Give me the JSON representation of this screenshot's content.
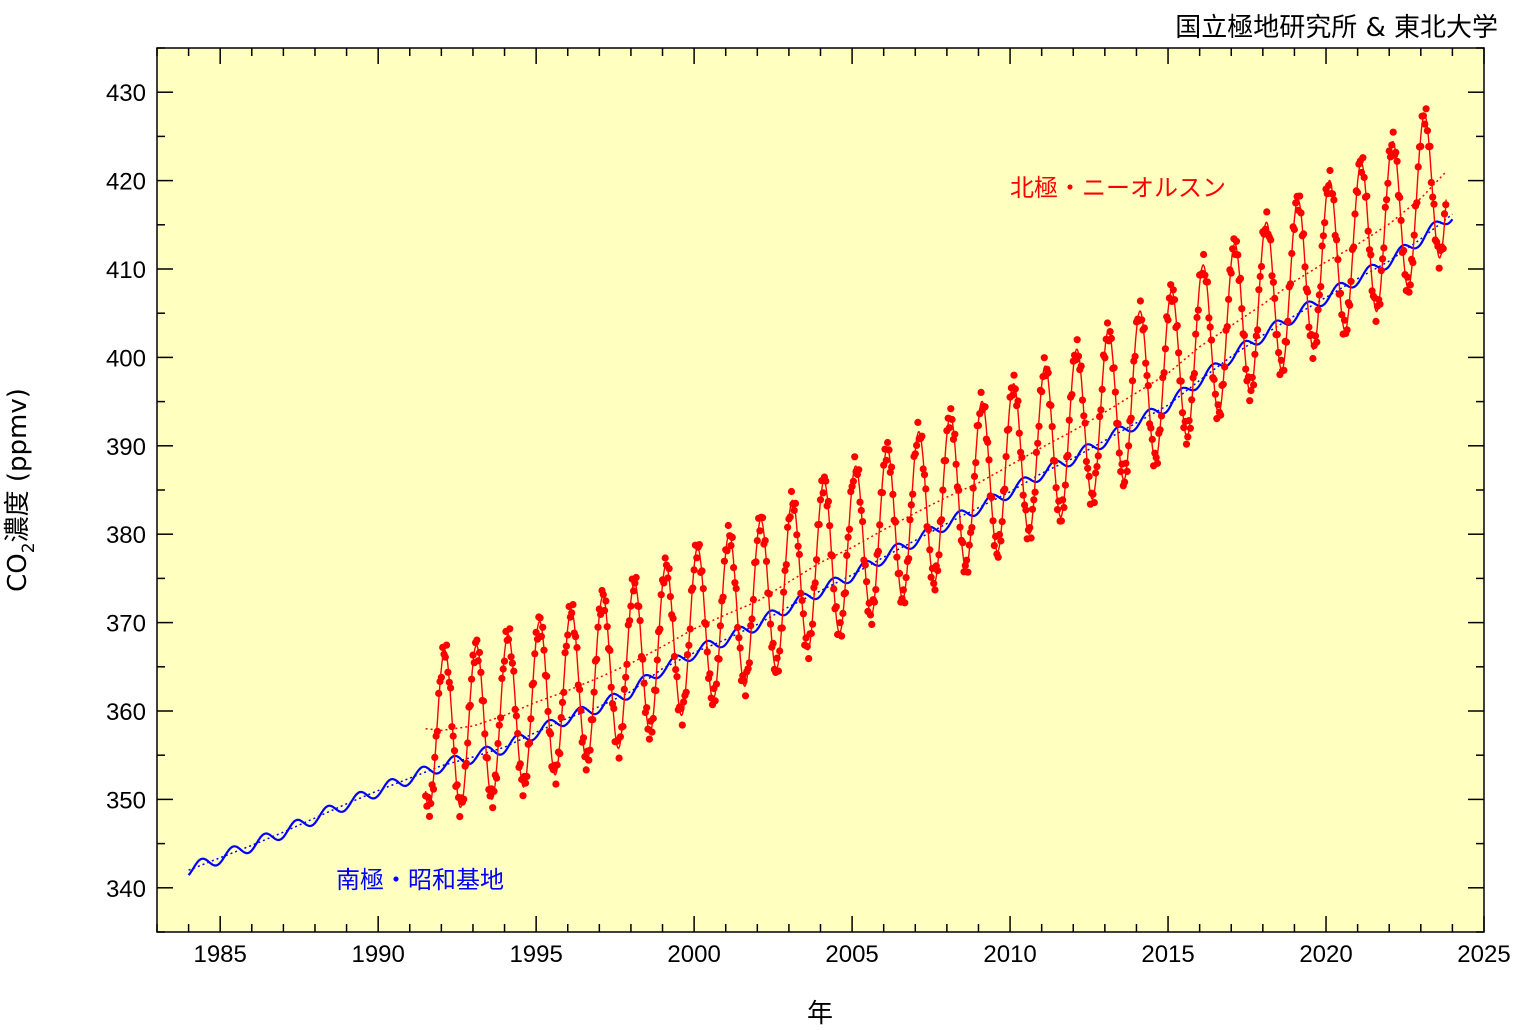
{
  "credit": "国立極地研究所 & 東北大学",
  "chart_data": {
    "type": "line",
    "title": "",
    "xlabel": "年",
    "ylabel_main": "CO",
    "ylabel_sub": "2",
    "ylabel_rest": "濃度 (ppmv)",
    "xlim": [
      1983,
      2025
    ],
    "ylim": [
      335,
      435
    ],
    "x_ticks": [
      1985,
      1990,
      1995,
      2000,
      2005,
      2010,
      2015,
      2020,
      2025
    ],
    "y_ticks": [
      340,
      350,
      360,
      370,
      380,
      390,
      400,
      410,
      420,
      430
    ],
    "background_color": "#ffffc0",
    "grid": false,
    "series": [
      {
        "name": "南極・昭和基地",
        "color": "#0000ff",
        "x": [
          1984.0,
          1985.0,
          1986.0,
          1987.0,
          1988.0,
          1989.0,
          1990.0,
          1991.0,
          1992.0,
          1993.0,
          1994.0,
          1995.0,
          1996.0,
          1997.0,
          1998.0,
          1999.0,
          2000.0,
          2001.0,
          2002.0,
          2003.0,
          2004.0,
          2005.0,
          2006.0,
          2007.0,
          2008.0,
          2009.0,
          2010.0,
          2011.0,
          2012.0,
          2013.0,
          2014.0,
          2015.0,
          2016.0,
          2017.0,
          2018.0,
          2019.0,
          2020.0,
          2021.0,
          2022.0,
          2023.0,
          2024.0
        ],
        "trend": [
          342.0,
          343.4,
          344.8,
          346.3,
          347.9,
          349.5,
          351.0,
          352.4,
          353.8,
          354.8,
          355.9,
          357.6,
          359.2,
          360.5,
          362.2,
          364.8,
          366.6,
          368.1,
          369.8,
          371.8,
          373.6,
          375.4,
          377.4,
          379.3,
          381.2,
          383.0,
          384.8,
          386.9,
          388.6,
          390.6,
          392.6,
          394.6,
          397.4,
          400.1,
          402.5,
          404.7,
          406.8,
          408.9,
          410.9,
          413.4,
          416.2
        ],
        "seasonal_amplitude": 0.7
      },
      {
        "name": "北極・ニーオルスン",
        "color": "#ff0000",
        "x": [
          1991.5,
          1992.0,
          1993.0,
          1994.0,
          1995.0,
          1996.0,
          1997.0,
          1998.0,
          1999.0,
          2000.0,
          2001.0,
          2002.0,
          2003.0,
          2004.0,
          2005.0,
          2006.0,
          2007.0,
          2008.0,
          2009.0,
          2010.0,
          2011.0,
          2012.0,
          2013.0,
          2014.0,
          2015.0,
          2016.0,
          2017.0,
          2018.0,
          2019.0,
          2020.0,
          2021.0,
          2022.0,
          2023.0,
          2023.8
        ],
        "trend": [
          358.0,
          357.8,
          358.3,
          359.5,
          361.0,
          362.3,
          363.8,
          365.4,
          367.3,
          369.3,
          370.9,
          372.4,
          374.6,
          376.8,
          378.5,
          380.5,
          382.4,
          384.2,
          385.8,
          387.8,
          389.8,
          391.7,
          393.8,
          396.0,
          398.2,
          401.2,
          403.6,
          406.0,
          408.6,
          410.8,
          412.8,
          415.1,
          418.0,
          421.0
        ],
        "seasonal_amplitude": 9.0
      }
    ],
    "annotations": [
      "南極・昭和基地",
      "北極・ニーオルスン"
    ]
  }
}
